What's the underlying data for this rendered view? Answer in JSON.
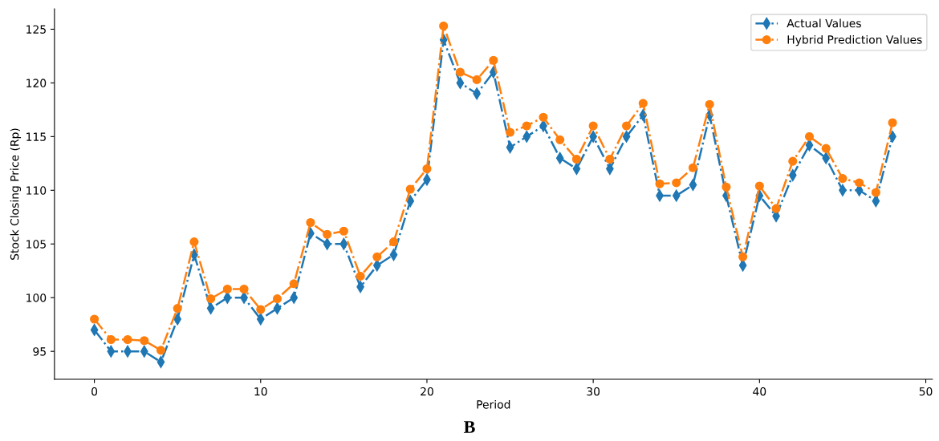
{
  "chart_data": {
    "type": "line",
    "xlabel": "Period",
    "ylabel": "Stock Closing Price (Rp)",
    "annotations": [
      "B"
    ],
    "x": [
      0,
      1,
      2,
      3,
      4,
      5,
      6,
      7,
      8,
      9,
      10,
      11,
      12,
      13,
      14,
      15,
      16,
      17,
      18,
      19,
      20,
      21,
      22,
      23,
      24,
      25,
      26,
      27,
      28,
      29,
      30,
      31,
      32,
      33,
      34,
      35,
      36,
      37,
      38,
      39,
      40,
      41,
      42,
      43,
      44,
      45,
      46,
      47,
      48
    ],
    "series": [
      {
        "name": "Actual Values",
        "color": "#1f77b4",
        "marker": "diamond",
        "values": [
          97,
          95,
          95,
          95,
          94,
          98,
          104,
          99,
          100,
          100,
          98,
          99,
          100,
          106,
          105,
          105,
          101,
          103,
          104,
          109,
          111,
          124,
          120,
          119,
          121,
          114,
          115,
          116,
          113,
          112,
          115,
          112,
          115,
          117,
          109.5,
          109.5,
          110.5,
          117,
          109.5,
          103,
          109.5,
          107.6,
          111.4,
          114.2,
          113,
          110,
          110,
          109,
          115
        ]
      },
      {
        "name": "Hybrid Prediction Values",
        "color": "#ff7f0e",
        "marker": "circle",
        "values": [
          98,
          96.1,
          96.1,
          96,
          95.1,
          99,
          105.2,
          99.9,
          100.8,
          100.8,
          98.9,
          99.9,
          101.3,
          107,
          105.9,
          106.2,
          102,
          103.8,
          105.2,
          110.1,
          112,
          125.3,
          121,
          120.3,
          122.1,
          115.4,
          116,
          116.8,
          114.7,
          112.9,
          116,
          112.9,
          116,
          118.1,
          110.6,
          110.7,
          112.1,
          118,
          110.3,
          103.8,
          110.4,
          108.3,
          112.7,
          115,
          113.9,
          111.1,
          110.7,
          109.8,
          116.3
        ]
      }
    ],
    "line_style": "dashdot",
    "xlim": [
      -2.4,
      50.4
    ],
    "xticks": [
      0,
      10,
      20,
      30,
      40,
      50
    ],
    "ylim": [
      92.4,
      126.9
    ],
    "yticks": [
      95,
      100,
      105,
      110,
      115,
      120,
      125
    ],
    "grid": false,
    "legend": "top right"
  }
}
